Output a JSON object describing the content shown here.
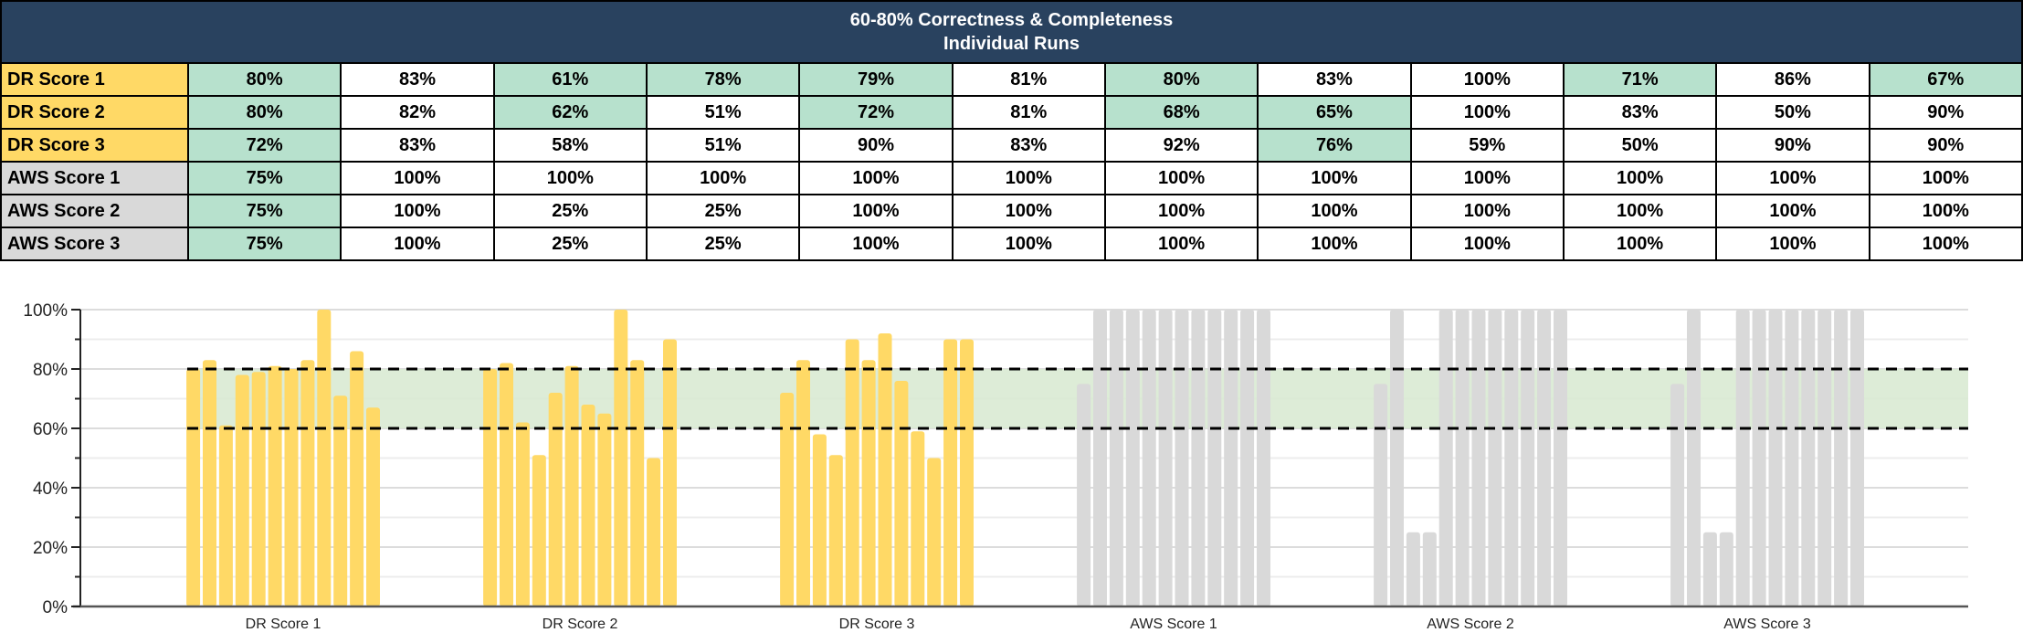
{
  "table": {
    "title_line1": "60-80% Correctness & Completeness",
    "title_line2": "Individual Runs",
    "highlight_range": [
      60,
      80
    ],
    "highlight_color": "#b7e1cd",
    "rows": [
      {
        "label": "DR Score 1",
        "label_color": "#ffd966",
        "values": [
          "80%",
          "83%",
          "61%",
          "78%",
          "79%",
          "81%",
          "80%",
          "83%",
          "100%",
          "71%",
          "86%",
          "67%"
        ]
      },
      {
        "label": "DR Score 2",
        "label_color": "#ffd966",
        "values": [
          "80%",
          "82%",
          "62%",
          "51%",
          "72%",
          "81%",
          "68%",
          "65%",
          "100%",
          "83%",
          "50%",
          "90%"
        ]
      },
      {
        "label": "DR Score 3",
        "label_color": "#ffd966",
        "values": [
          "72%",
          "83%",
          "58%",
          "51%",
          "90%",
          "83%",
          "92%",
          "76%",
          "59%",
          "50%",
          "90%",
          "90%"
        ]
      },
      {
        "label": "AWS Score 1",
        "label_color": "#d9d9d9",
        "values": [
          "75%",
          "100%",
          "100%",
          "100%",
          "100%",
          "100%",
          "100%",
          "100%",
          "100%",
          "100%",
          "100%",
          "100%"
        ]
      },
      {
        "label": "AWS Score 2",
        "label_color": "#d9d9d9",
        "values": [
          "75%",
          "100%",
          "25%",
          "25%",
          "100%",
          "100%",
          "100%",
          "100%",
          "100%",
          "100%",
          "100%",
          "100%"
        ]
      },
      {
        "label": "AWS Score 3",
        "label_color": "#d9d9d9",
        "values": [
          "75%",
          "100%",
          "25%",
          "25%",
          "100%",
          "100%",
          "100%",
          "100%",
          "100%",
          "100%",
          "100%",
          "100%"
        ]
      }
    ]
  },
  "chart_data": {
    "type": "bar",
    "title": "",
    "xlabel": "",
    "ylabel": "",
    "ylim": [
      0,
      100
    ],
    "y_tick_labels": [
      "0%",
      "20%",
      "40%",
      "60%",
      "80%",
      "100%"
    ],
    "grid": true,
    "target_band": {
      "low": 60,
      "high": 80,
      "color": "#d9ead3",
      "lines": "dashed"
    },
    "categories": [
      "DR Score 1",
      "DR Score 2",
      "DR Score 3",
      "AWS Score 1",
      "AWS Score 2",
      "AWS Score 3"
    ],
    "category_colors": [
      "#ffd966",
      "#ffd966",
      "#ffd966",
      "#d9d9d9",
      "#d9d9d9",
      "#d9d9d9"
    ],
    "runs": [
      [
        80,
        83,
        61,
        78,
        79,
        81,
        80,
        83,
        100,
        71,
        86,
        67
      ],
      [
        80,
        82,
        62,
        51,
        72,
        81,
        68,
        65,
        100,
        83,
        50,
        90
      ],
      [
        72,
        83,
        58,
        51,
        90,
        83,
        92,
        76,
        59,
        50,
        90,
        90
      ],
      [
        75,
        100,
        100,
        100,
        100,
        100,
        100,
        100,
        100,
        100,
        100,
        100
      ],
      [
        75,
        100,
        25,
        25,
        100,
        100,
        100,
        100,
        100,
        100,
        100,
        100
      ],
      [
        75,
        100,
        25,
        25,
        100,
        100,
        100,
        100,
        100,
        100,
        100,
        100
      ]
    ]
  }
}
